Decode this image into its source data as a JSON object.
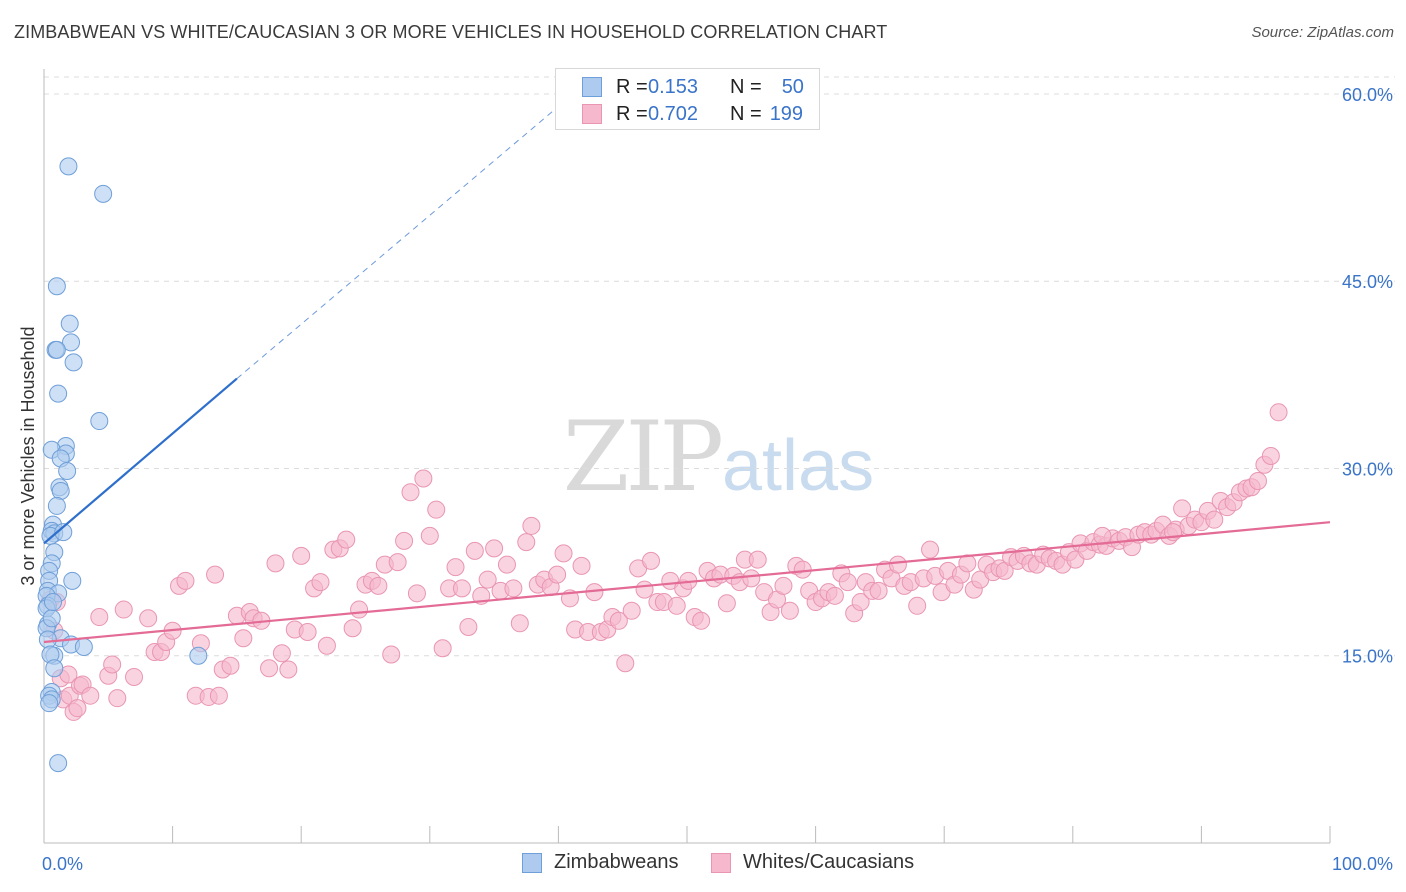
{
  "title": "ZIMBABWEAN VS WHITE/CAUCASIAN 3 OR MORE VEHICLES IN HOUSEHOLD CORRELATION CHART",
  "source": "Source: ZipAtlas.com",
  "watermark": {
    "zip": "ZIP",
    "atlas": "atlas"
  },
  "legend": {
    "rows": [
      {
        "r_label": "R =",
        "r_value": "0.153",
        "n_label": "N =",
        "n_value": "50"
      },
      {
        "r_label": "R =",
        "r_value": "0.702",
        "n_label": "N =",
        "n_value": "199"
      }
    ]
  },
  "colors": {
    "blue_fill": "#aecbef",
    "blue_stroke": "#6f9fd8",
    "blue_line": "#2f6fcc",
    "pink_fill": "#f5b8cc",
    "pink_stroke": "#e995b3",
    "pink_line": "#e36b95",
    "tick_label": "#3a74c9",
    "grid": "#dcdcdc"
  },
  "chart_data": {
    "type": "scatter",
    "title": "ZIMBABWEAN VS WHITE/CAUCASIAN 3 OR MORE VEHICLES IN HOUSEHOLD CORRELATION CHART",
    "xlabel": "",
    "ylabel": "3 or more Vehicles in Household",
    "xlim": [
      0,
      100
    ],
    "ylim": [
      0,
      62
    ],
    "x_tick_labels": [
      "0.0%",
      "100.0%"
    ],
    "y_ticks": [
      15,
      30,
      45,
      60
    ],
    "y_tick_labels": [
      "15.0%",
      "30.0%",
      "45.0%",
      "60.0%"
    ],
    "grid": true,
    "legend_position": "bottom-center",
    "series": [
      {
        "name": "Zimbabweans",
        "color": "#aecbef",
        "trend": {
          "x0": 0,
          "y0": 24.0,
          "x1": 15,
          "y1": 37.2,
          "extend_to_x": 40,
          "extend_to_y": 59.0
        },
        "points": [
          [
            1.9,
            54.2
          ],
          [
            4.6,
            52.0
          ],
          [
            1.0,
            44.6
          ],
          [
            2.0,
            41.6
          ],
          [
            2.1,
            40.1
          ],
          [
            0.9,
            39.5
          ],
          [
            1.0,
            39.5
          ],
          [
            2.3,
            38.5
          ],
          [
            1.1,
            36.0
          ],
          [
            4.3,
            33.8
          ],
          [
            1.7,
            31.8
          ],
          [
            0.6,
            31.5
          ],
          [
            1.7,
            31.2
          ],
          [
            1.3,
            30.8
          ],
          [
            1.8,
            29.8
          ],
          [
            1.2,
            28.5
          ],
          [
            1.3,
            28.2
          ],
          [
            1.0,
            27.0
          ],
          [
            0.7,
            25.5
          ],
          [
            0.6,
            25.0
          ],
          [
            0.8,
            24.8
          ],
          [
            0.5,
            24.6
          ],
          [
            0.8,
            23.3
          ],
          [
            0.6,
            22.4
          ],
          [
            0.4,
            21.8
          ],
          [
            0.4,
            21.0
          ],
          [
            2.2,
            21.0
          ],
          [
            0.3,
            20.2
          ],
          [
            1.1,
            20.0
          ],
          [
            0.2,
            19.8
          ],
          [
            0.3,
            19.0
          ],
          [
            0.2,
            18.8
          ],
          [
            0.3,
            17.5
          ],
          [
            0.2,
            17.2
          ],
          [
            1.3,
            16.4
          ],
          [
            0.3,
            16.3
          ],
          [
            2.1,
            15.9
          ],
          [
            3.1,
            15.7
          ],
          [
            0.8,
            15.0
          ],
          [
            0.5,
            15.1
          ],
          [
            0.8,
            14.0
          ],
          [
            12.0,
            15.0
          ],
          [
            0.6,
            12.1
          ],
          [
            0.4,
            11.8
          ],
          [
            0.6,
            11.5
          ],
          [
            0.4,
            11.2
          ],
          [
            1.1,
            6.4
          ],
          [
            0.6,
            18.0
          ],
          [
            0.7,
            19.3
          ],
          [
            1.5,
            24.9
          ]
        ]
      },
      {
        "name": "Whites/Caucasians",
        "color": "#f5b8cc",
        "trend": {
          "x0": 0,
          "y0": 16.1,
          "x1": 100,
          "y1": 25.7
        },
        "points": [
          [
            0.5,
            19.5
          ],
          [
            0.8,
            17.0
          ],
          [
            1.0,
            19.3
          ],
          [
            1.3,
            13.2
          ],
          [
            1.5,
            11.5
          ],
          [
            1.9,
            13.5
          ],
          [
            2.0,
            11.8
          ],
          [
            2.3,
            10.5
          ],
          [
            2.6,
            10.8
          ],
          [
            2.8,
            12.6
          ],
          [
            3.0,
            12.7
          ],
          [
            3.6,
            11.8
          ],
          [
            4.3,
            18.1
          ],
          [
            5.0,
            13.4
          ],
          [
            5.3,
            14.3
          ],
          [
            5.7,
            11.6
          ],
          [
            6.2,
            18.7
          ],
          [
            7.0,
            13.3
          ],
          [
            8.1,
            18.0
          ],
          [
            8.6,
            15.3
          ],
          [
            9.1,
            15.3
          ],
          [
            9.5,
            16.1
          ],
          [
            10.0,
            17.0
          ],
          [
            10.5,
            20.6
          ],
          [
            11.0,
            21.0
          ],
          [
            11.8,
            11.8
          ],
          [
            12.2,
            16.0
          ],
          [
            12.8,
            11.7
          ],
          [
            13.3,
            21.5
          ],
          [
            13.6,
            11.8
          ],
          [
            13.9,
            13.9
          ],
          [
            14.5,
            14.2
          ],
          [
            15.0,
            18.2
          ],
          [
            15.5,
            16.4
          ],
          [
            16.0,
            18.5
          ],
          [
            16.3,
            18.0
          ],
          [
            16.9,
            17.8
          ],
          [
            17.5,
            14.0
          ],
          [
            18.0,
            22.4
          ],
          [
            18.5,
            15.2
          ],
          [
            19.0,
            13.9
          ],
          [
            19.5,
            17.1
          ],
          [
            20.0,
            23.0
          ],
          [
            20.5,
            16.9
          ],
          [
            21.0,
            20.4
          ],
          [
            21.5,
            20.9
          ],
          [
            22.0,
            15.8
          ],
          [
            22.5,
            23.5
          ],
          [
            23.0,
            23.6
          ],
          [
            23.5,
            24.3
          ],
          [
            24.0,
            17.2
          ],
          [
            24.5,
            18.7
          ],
          [
            25.0,
            20.7
          ],
          [
            25.5,
            21.0
          ],
          [
            26.0,
            20.6
          ],
          [
            26.5,
            22.3
          ],
          [
            27.0,
            15.1
          ],
          [
            27.5,
            22.5
          ],
          [
            28.0,
            24.2
          ],
          [
            28.5,
            28.1
          ],
          [
            29.0,
            20.0
          ],
          [
            29.5,
            29.2
          ],
          [
            30.0,
            24.6
          ],
          [
            30.5,
            26.7
          ],
          [
            31.0,
            15.6
          ],
          [
            31.5,
            20.4
          ],
          [
            32.0,
            22.1
          ],
          [
            32.5,
            20.4
          ],
          [
            33.0,
            17.3
          ],
          [
            33.5,
            23.4
          ],
          [
            34.0,
            19.8
          ],
          [
            34.5,
            21.1
          ],
          [
            35.0,
            23.6
          ],
          [
            35.5,
            20.2
          ],
          [
            36.0,
            22.3
          ],
          [
            36.5,
            20.4
          ],
          [
            37.0,
            17.6
          ],
          [
            37.5,
            24.1
          ],
          [
            37.9,
            25.4
          ],
          [
            38.4,
            20.7
          ],
          [
            38.9,
            21.1
          ],
          [
            39.4,
            20.5
          ],
          [
            39.9,
            21.5
          ],
          [
            40.4,
            23.2
          ],
          [
            40.9,
            19.6
          ],
          [
            41.3,
            17.1
          ],
          [
            41.8,
            22.2
          ],
          [
            42.3,
            16.9
          ],
          [
            42.8,
            20.1
          ],
          [
            43.3,
            16.9
          ],
          [
            43.8,
            17.1
          ],
          [
            44.2,
            18.1
          ],
          [
            44.7,
            17.8
          ],
          [
            45.2,
            14.4
          ],
          [
            45.7,
            18.6
          ],
          [
            46.2,
            22.0
          ],
          [
            46.7,
            20.3
          ],
          [
            47.2,
            22.6
          ],
          [
            47.7,
            19.3
          ],
          [
            48.2,
            19.3
          ],
          [
            48.7,
            21.0
          ],
          [
            49.2,
            19.0
          ],
          [
            49.7,
            20.4
          ],
          [
            50.1,
            21.0
          ],
          [
            50.6,
            18.1
          ],
          [
            51.1,
            17.8
          ],
          [
            51.6,
            21.8
          ],
          [
            52.1,
            21.2
          ],
          [
            52.6,
            21.5
          ],
          [
            53.1,
            19.2
          ],
          [
            53.6,
            21.4
          ],
          [
            54.1,
            20.9
          ],
          [
            54.5,
            22.7
          ],
          [
            55.0,
            21.2
          ],
          [
            55.5,
            22.7
          ],
          [
            56.0,
            20.1
          ],
          [
            56.5,
            18.5
          ],
          [
            57.0,
            19.5
          ],
          [
            57.5,
            20.6
          ],
          [
            58.0,
            18.6
          ],
          [
            58.5,
            22.2
          ],
          [
            59.0,
            21.9
          ],
          [
            59.5,
            20.2
          ],
          [
            60.0,
            19.3
          ],
          [
            60.5,
            19.6
          ],
          [
            61.0,
            20.1
          ],
          [
            61.5,
            19.8
          ],
          [
            62.0,
            21.6
          ],
          [
            62.5,
            20.9
          ],
          [
            63.0,
            18.4
          ],
          [
            63.5,
            19.3
          ],
          [
            63.9,
            20.9
          ],
          [
            64.4,
            20.2
          ],
          [
            64.9,
            20.2
          ],
          [
            65.4,
            21.9
          ],
          [
            65.9,
            21.2
          ],
          [
            66.4,
            22.3
          ],
          [
            66.9,
            20.6
          ],
          [
            67.4,
            20.9
          ],
          [
            67.9,
            19.0
          ],
          [
            68.4,
            21.2
          ],
          [
            68.9,
            23.5
          ],
          [
            69.3,
            21.4
          ],
          [
            69.8,
            20.1
          ],
          [
            70.3,
            21.8
          ],
          [
            70.8,
            20.7
          ],
          [
            71.3,
            21.5
          ],
          [
            71.8,
            22.4
          ],
          [
            72.3,
            20.3
          ],
          [
            72.8,
            21.1
          ],
          [
            73.3,
            22.3
          ],
          [
            73.8,
            21.7
          ],
          [
            74.3,
            22.0
          ],
          [
            74.7,
            21.8
          ],
          [
            75.2,
            22.9
          ],
          [
            75.7,
            22.6
          ],
          [
            76.2,
            23.0
          ],
          [
            76.7,
            22.4
          ],
          [
            77.2,
            22.3
          ],
          [
            77.7,
            23.1
          ],
          [
            78.2,
            22.8
          ],
          [
            78.7,
            22.6
          ],
          [
            79.2,
            22.3
          ],
          [
            79.7,
            23.3
          ],
          [
            80.2,
            22.7
          ],
          [
            80.6,
            24.0
          ],
          [
            81.1,
            23.4
          ],
          [
            81.6,
            24.1
          ],
          [
            82.1,
            23.9
          ],
          [
            82.6,
            23.8
          ],
          [
            83.1,
            24.4
          ],
          [
            83.6,
            24.2
          ],
          [
            84.1,
            24.5
          ],
          [
            84.6,
            23.7
          ],
          [
            85.1,
            24.7
          ],
          [
            85.6,
            24.9
          ],
          [
            86.1,
            24.7
          ],
          [
            86.5,
            25.0
          ],
          [
            87.0,
            25.5
          ],
          [
            87.5,
            24.6
          ],
          [
            88.0,
            25.1
          ],
          [
            88.5,
            26.8
          ],
          [
            89.0,
            25.4
          ],
          [
            89.5,
            25.9
          ],
          [
            90.0,
            25.7
          ],
          [
            90.5,
            26.6
          ],
          [
            91.0,
            25.9
          ],
          [
            91.5,
            27.4
          ],
          [
            92.0,
            26.9
          ],
          [
            92.5,
            27.3
          ],
          [
            93.0,
            28.1
          ],
          [
            93.5,
            28.4
          ],
          [
            93.9,
            28.5
          ],
          [
            94.4,
            29.0
          ],
          [
            94.9,
            30.3
          ],
          [
            95.4,
            31.0
          ],
          [
            96.0,
            34.5
          ],
          [
            82.3,
            24.6
          ],
          [
            87.8,
            24.9
          ]
        ]
      }
    ]
  }
}
